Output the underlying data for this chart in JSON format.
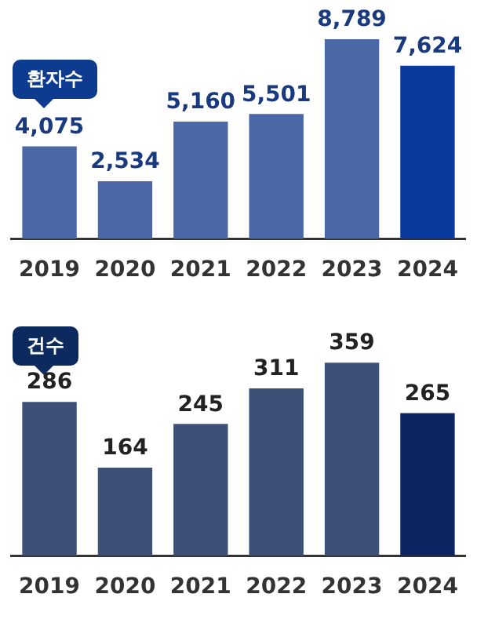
{
  "chart_data": [
    {
      "type": "bar",
      "title": "환자수",
      "categories": [
        "2019",
        "2020",
        "2021",
        "2022",
        "2023",
        "2024"
      ],
      "values": [
        4075,
        2534,
        5160,
        5501,
        8789,
        7624
      ],
      "value_labels": [
        "4,075",
        "2,534",
        "5,160",
        "5,501",
        "8,789",
        "7,624"
      ],
      "colors": [
        "#4a68a6",
        "#4a68a6",
        "#4a68a6",
        "#4a68a6",
        "#4a68a6",
        "#0b3a9e"
      ],
      "tick_labels": "x",
      "grid": false,
      "legend": false
    },
    {
      "type": "bar",
      "title": "건수",
      "categories": [
        "2019",
        "2020",
        "2021",
        "2022",
        "2023",
        "2024"
      ],
      "values": [
        286,
        164,
        245,
        311,
        359,
        265
      ],
      "value_labels": [
        "286",
        "164",
        "245",
        "311",
        "359",
        "265"
      ],
      "colors": [
        "#3d5178",
        "#3d5178",
        "#3d5178",
        "#3d5178",
        "#3d5178",
        "#0c2461"
      ],
      "tick_labels": "x",
      "grid": false,
      "legend": false
    }
  ]
}
